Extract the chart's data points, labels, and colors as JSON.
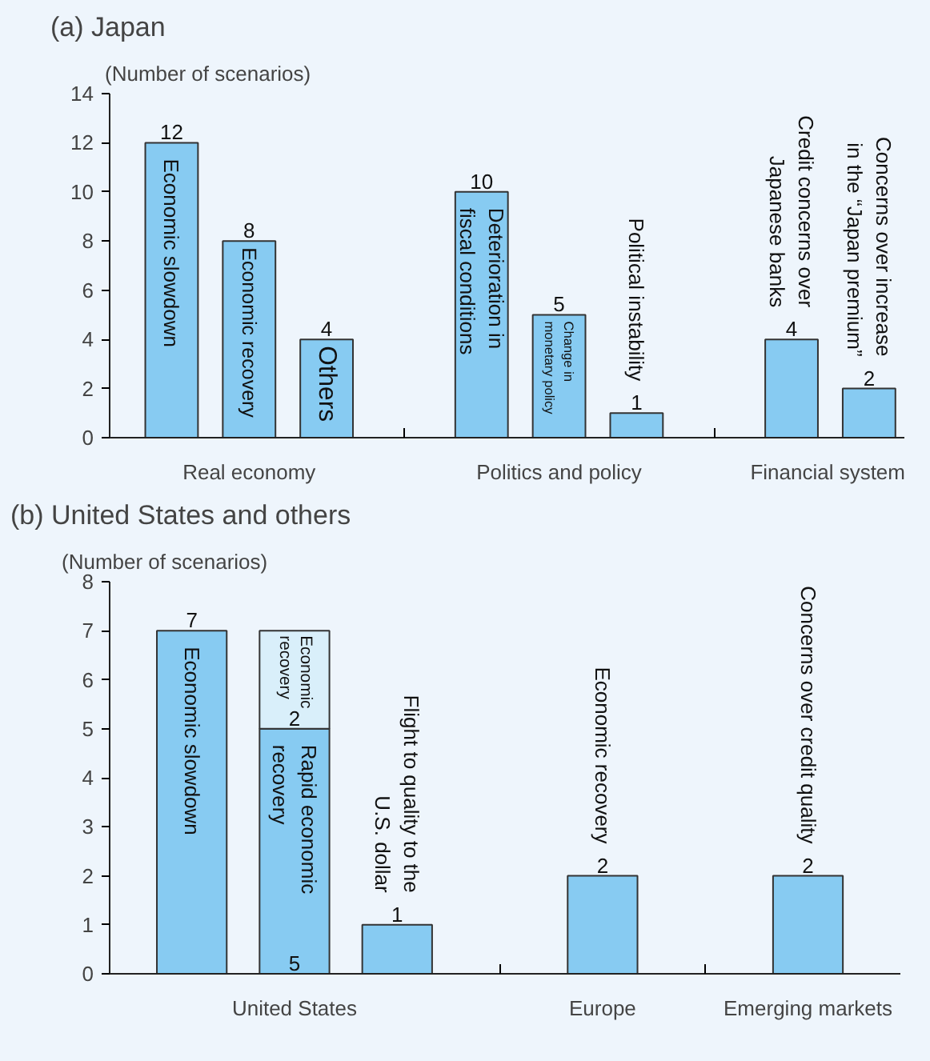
{
  "chart_data": [
    {
      "type": "bar",
      "title": "(a) Japan",
      "ylabel": "(Number of scenarios)",
      "categories": [
        "Economic slowdown",
        "Economic recovery",
        "Others",
        null,
        "Deterioration in\nfiscal conditions",
        "Change in\nmonetary policy",
        "Political instability",
        null,
        "Credit concerns over\nJapanese banks",
        "Concerns over increase\nin the “Japan premium”"
      ],
      "series": [
        {
          "color": "#87cbf2",
          "values": [
            12,
            8,
            4,
            null,
            10,
            5,
            1,
            null,
            4,
            2
          ]
        }
      ],
      "ylim": [
        0,
        14
      ],
      "yticks": [
        0,
        2,
        4,
        6,
        8,
        10,
        12,
        14
      ],
      "data_labels": true,
      "annotations": [
        "Real economy",
        "Politics and policy",
        "Financial system"
      ]
    },
    {
      "type": "bar",
      "title": "(b) United States and others",
      "ylabel": "(Number of scenarios)",
      "stacked": true,
      "categories": [
        "Economic slowdown",
        "Rapid economic\nrecovery",
        "Flight to quality to the\nU.S. dollar",
        null,
        "Economic recovery",
        null,
        "Concerns over credit quality"
      ],
      "series": [
        {
          "color": "#87cbf2",
          "values": [
            7,
            5,
            1,
            null,
            2,
            null,
            2
          ]
        },
        {
          "name": "Economic\nrecovery",
          "color": "#d9effa",
          "values": [
            null,
            2,
            null,
            null,
            null,
            null,
            null
          ]
        }
      ],
      "ylim": [
        0,
        8
      ],
      "yticks": [
        0,
        1,
        2,
        3,
        4,
        5,
        6,
        7,
        8
      ],
      "data_labels": true,
      "annotations": [
        "United States",
        "Europe",
        "Emerging markets"
      ]
    }
  ]
}
